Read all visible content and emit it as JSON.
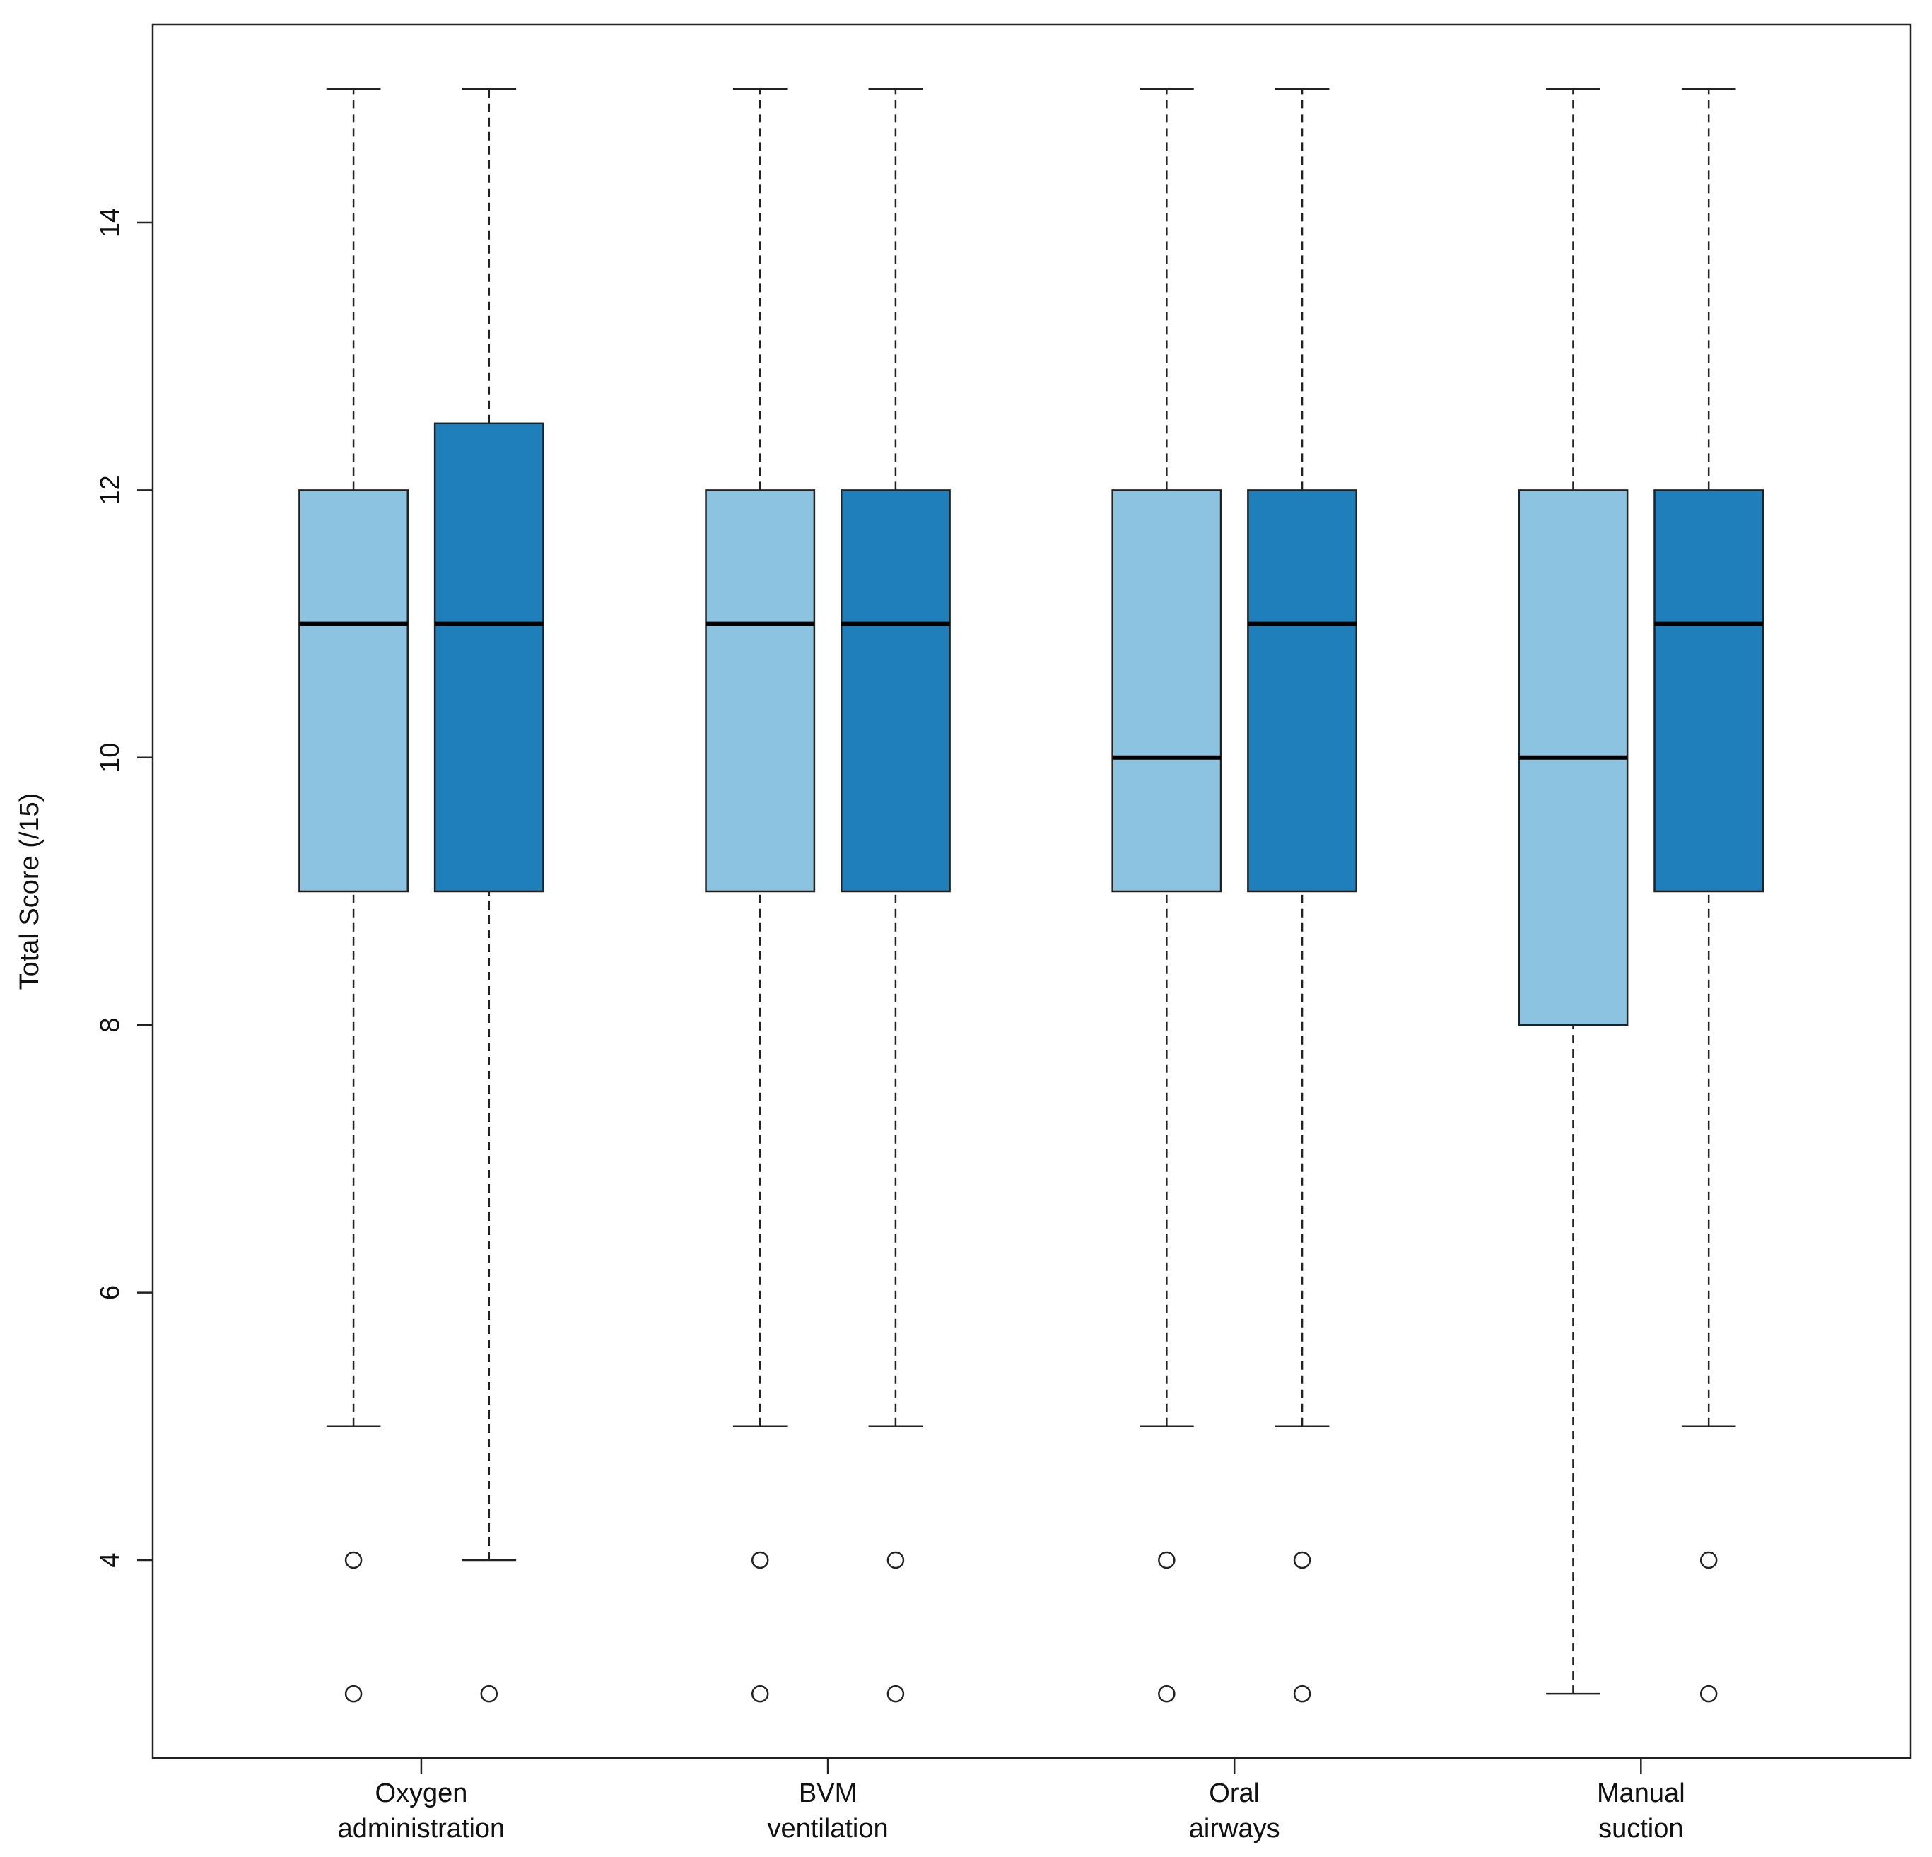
{
  "chart_data": {
    "type": "boxplot",
    "ylabel": "Total Score (/15)",
    "categories": [
      [
        "Oxygen",
        "administration"
      ],
      [
        "BVM",
        "ventilation"
      ],
      [
        "Oral",
        "airways"
      ],
      [
        "Manual",
        "suction"
      ]
    ],
    "series": [
      {
        "color": "#8cc3e1",
        "min": [
          5,
          5,
          5,
          3
        ],
        "q1": [
          9,
          9,
          9,
          8
        ],
        "median": [
          11,
          11,
          10,
          10
        ],
        "q3": [
          12,
          12,
          12,
          12
        ],
        "max": [
          15,
          15,
          15,
          15
        ],
        "outliers": [
          [
            4,
            3
          ],
          [
            4,
            3
          ],
          [
            4,
            3
          ],
          []
        ]
      },
      {
        "color": "#1f7fba",
        "min": [
          4,
          5,
          5,
          5
        ],
        "q1": [
          9,
          9,
          9,
          9
        ],
        "median": [
          11,
          11,
          11,
          11
        ],
        "q3": [
          12.5,
          12,
          12,
          12
        ],
        "max": [
          15,
          15,
          15,
          15
        ],
        "outliers": [
          [
            3
          ],
          [
            4,
            3
          ],
          [
            4,
            3
          ],
          [
            4,
            3
          ]
        ]
      }
    ],
    "ylim": [
      2.52,
      15.48
    ],
    "yticks": [
      4,
      6,
      8,
      10,
      12,
      14
    ]
  }
}
